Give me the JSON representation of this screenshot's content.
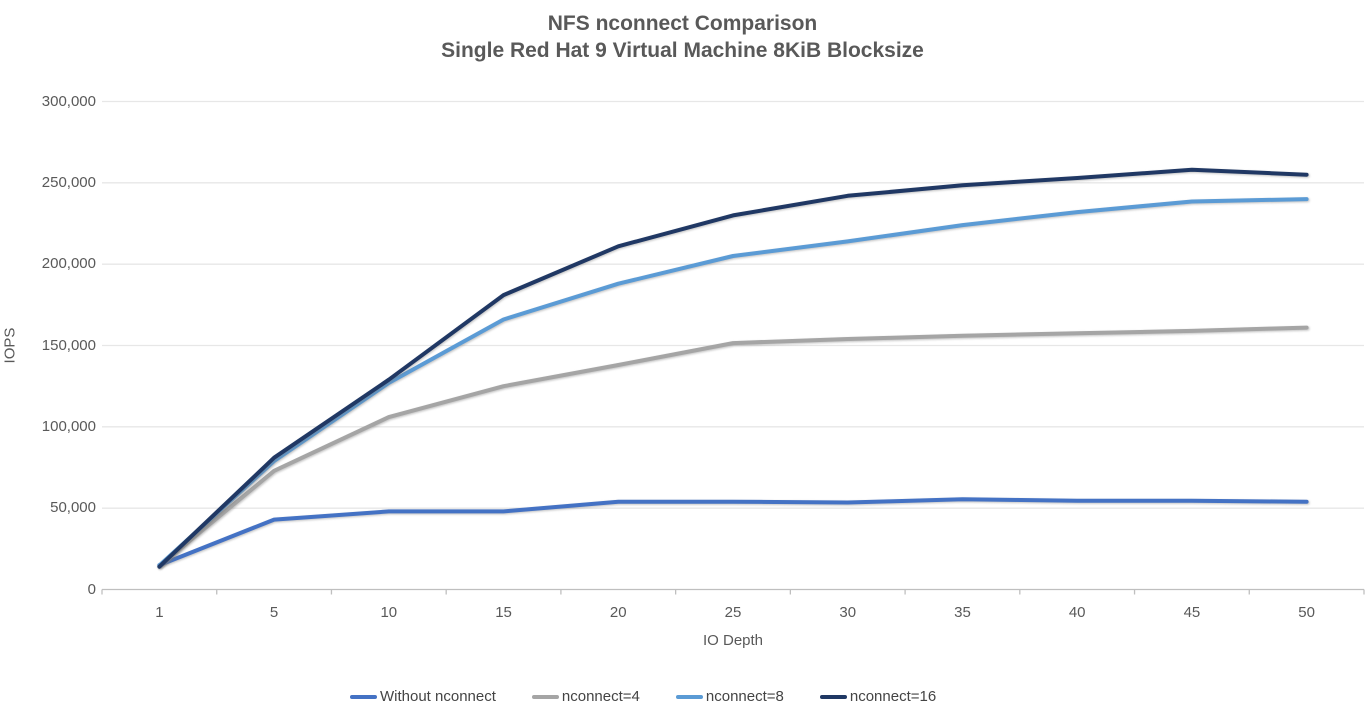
{
  "title": {
    "line1": "NFS nconnect Comparison",
    "line2": "Single Red Hat 9 Virtual Machine 8KiB Blocksize"
  },
  "chart_data": {
    "type": "line",
    "title": "NFS nconnect Comparison",
    "subtitle": "Single Red Hat 9 Virtual Machine 8KiB Blocksize",
    "xlabel": "IO Depth",
    "ylabel": "IOPS",
    "categories": [
      "1",
      "5",
      "10",
      "15",
      "20",
      "25",
      "30",
      "35",
      "40",
      "45",
      "50"
    ],
    "ylim": [
      0,
      300000
    ],
    "y_tick_interval": 50000,
    "y_tick_labels": [
      "0",
      "50,000",
      "100,000",
      "150,000",
      "200,000",
      "250,000",
      "300,000"
    ],
    "grid": true,
    "legend_position": "bottom",
    "colors": {
      "grid_line": "#e7e7e7",
      "axis_line": "#bfbfbf",
      "text": "#595959"
    },
    "series": [
      {
        "name": "Without nconnect",
        "color": "#4472c4",
        "values": [
          15000,
          43000,
          48000,
          48000,
          54000,
          54000,
          53500,
          55500,
          54500,
          54500,
          54000
        ]
      },
      {
        "name": "nconnect=4",
        "color": "#a5a5a5",
        "values": [
          14500,
          73000,
          106000,
          125000,
          138000,
          151500,
          154000,
          156000,
          157500,
          159000,
          161000
        ]
      },
      {
        "name": "nconnect=8",
        "color": "#5b9bd5",
        "values": [
          14800,
          79000,
          127000,
          166000,
          188000,
          205000,
          214000,
          224000,
          232000,
          238500,
          240000
        ]
      },
      {
        "name": "nconnect=16",
        "color": "#203864",
        "values": [
          14000,
          81000,
          129000,
          181000,
          211000,
          230000,
          242000,
          248500,
          253000,
          258000,
          255000
        ]
      }
    ]
  }
}
